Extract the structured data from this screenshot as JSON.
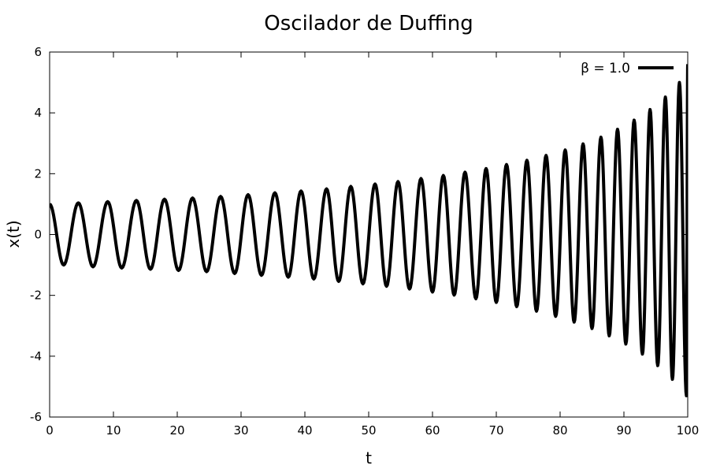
{
  "chart_data": {
    "type": "line",
    "title": "Oscilador de Duffing",
    "xlabel": "t",
    "ylabel": "x(t)",
    "xlim": [
      0,
      100
    ],
    "ylim": [
      -6,
      6
    ],
    "xticks": [
      0,
      10,
      20,
      30,
      40,
      50,
      60,
      70,
      80,
      90,
      100
    ],
    "yticks": [
      -6,
      -4,
      -2,
      0,
      2,
      4,
      6
    ],
    "xtick_labels": [
      "0",
      "10",
      "20",
      "30",
      "40",
      "50",
      "60",
      "70",
      "80",
      "90",
      "100"
    ],
    "ytick_labels": [
      "-6",
      "-4",
      "-2",
      "0",
      "2",
      "4",
      "6"
    ],
    "grid": false,
    "legend_position": "top-right",
    "series": [
      {
        "name": "β = 1.0",
        "color": "#000000",
        "x": [
          0,
          2.2,
          4.5,
          6.8,
          9.1,
          11.3,
          13.6,
          15.8,
          18.0,
          20.2,
          22.4,
          24.6,
          26.8,
          29.0,
          31.1,
          33.2,
          35.3,
          37.4,
          39.4,
          41.4,
          43.4,
          45.3,
          47.2,
          49.1,
          51.0,
          52.8,
          54.6,
          56.4,
          58.2,
          60.0,
          61.7,
          63.4,
          65.1,
          66.8,
          68.4,
          70.0,
          71.6,
          73.2,
          74.8,
          76.3,
          77.8,
          79.3,
          80.8,
          82.2,
          83.6,
          85.0,
          86.4,
          87.7,
          89.0,
          90.3,
          91.6,
          92.9,
          94.1,
          95.3,
          96.5,
          97.6,
          98.7,
          99.8,
          100
        ],
        "y": [
          1.0,
          -1.0,
          1.04,
          -1.06,
          1.08,
          -1.1,
          1.12,
          -1.14,
          1.16,
          -1.18,
          1.2,
          -1.22,
          1.25,
          -1.28,
          1.31,
          -1.34,
          1.37,
          -1.4,
          1.43,
          -1.46,
          1.5,
          -1.54,
          1.58,
          -1.62,
          1.66,
          -1.7,
          1.74,
          -1.79,
          1.84,
          -1.89,
          1.94,
          -1.99,
          2.05,
          -2.11,
          2.17,
          -2.23,
          2.3,
          -2.37,
          2.44,
          -2.52,
          2.6,
          -2.69,
          2.78,
          -2.88,
          2.98,
          -3.09,
          3.2,
          -3.33,
          3.46,
          -3.6,
          3.76,
          -3.93,
          4.11,
          -4.31,
          4.52,
          -4.76,
          5.0,
          -5.3,
          5.6
        ]
      }
    ]
  }
}
